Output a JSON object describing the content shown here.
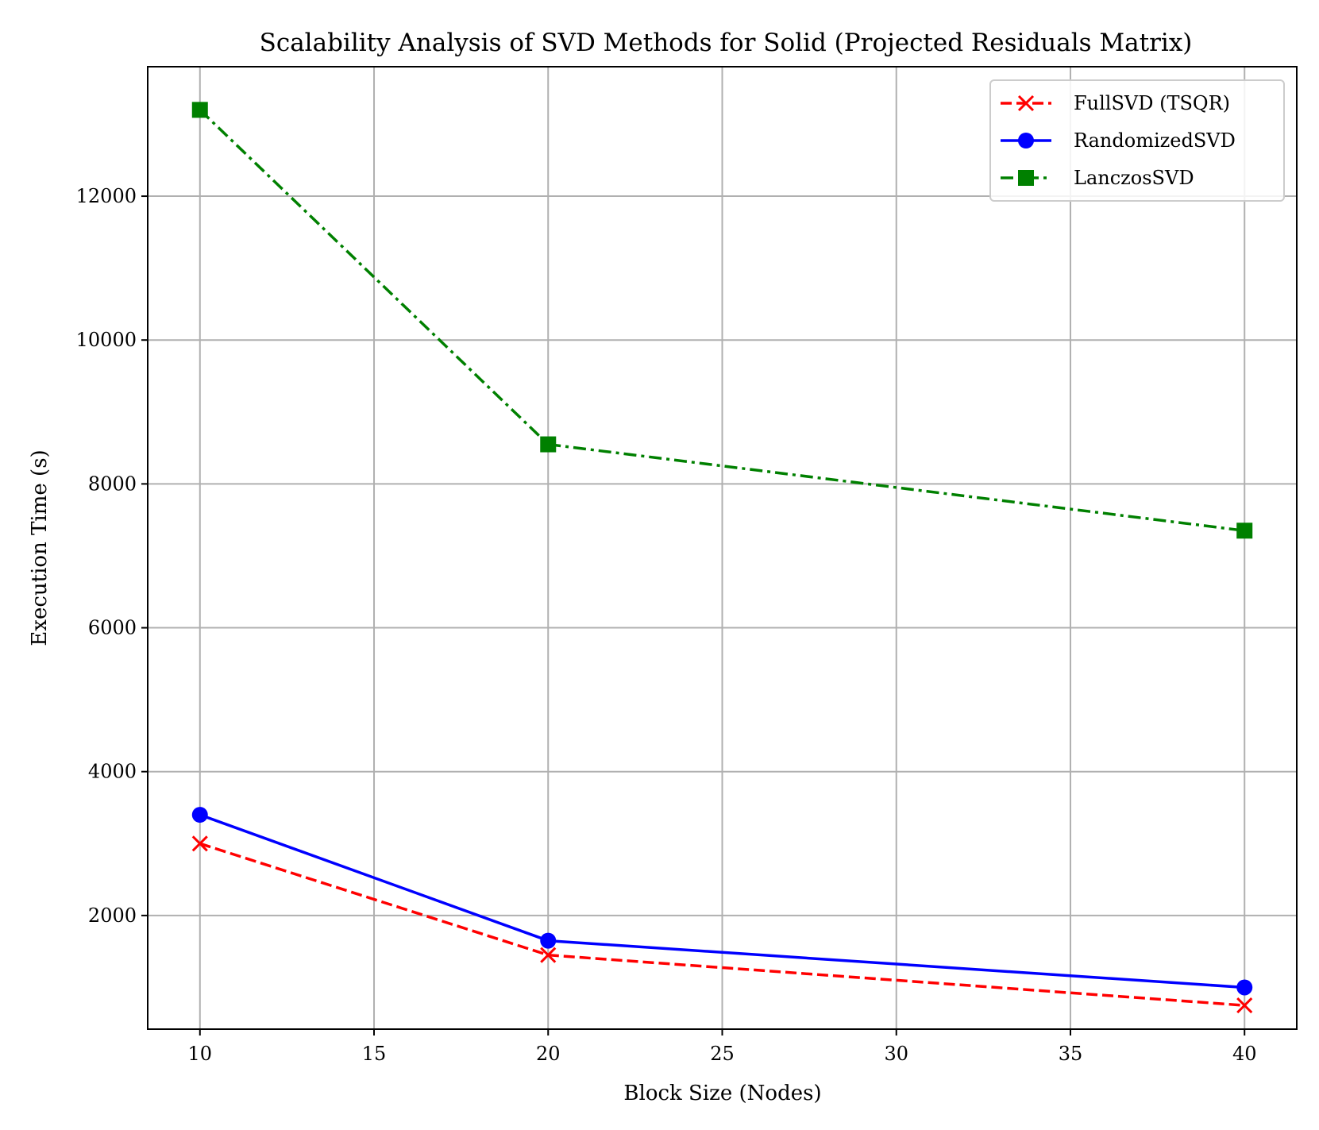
{
  "chart_data": {
    "type": "line",
    "title": "Scalability Analysis of SVD Methods for Solid (Projected Residuals Matrix)",
    "xlabel": "Block Size (Nodes)",
    "ylabel": "Execution Time (s)",
    "x": [
      10,
      20,
      40
    ],
    "xlim": [
      8.5,
      41.5
    ],
    "ylim": [
      420,
      13800
    ],
    "xticks": [
      10,
      15,
      20,
      25,
      30,
      35,
      40
    ],
    "yticks": [
      2000,
      4000,
      6000,
      8000,
      10000,
      12000
    ],
    "grid": true,
    "legend_position": "top-right",
    "series": [
      {
        "name": "FullSVD (TSQR)",
        "values": [
          3000,
          1450,
          750
        ],
        "color": "#ff0000",
        "marker": "x",
        "linestyle": "dashed"
      },
      {
        "name": "RandomizedSVD",
        "values": [
          3400,
          1650,
          1000
        ],
        "color": "#0000ff",
        "marker": "circle",
        "linestyle": "solid"
      },
      {
        "name": "LanczosSVD",
        "values": [
          13200,
          8550,
          7350
        ],
        "color": "#008000",
        "marker": "square",
        "linestyle": "dashdot"
      }
    ]
  }
}
